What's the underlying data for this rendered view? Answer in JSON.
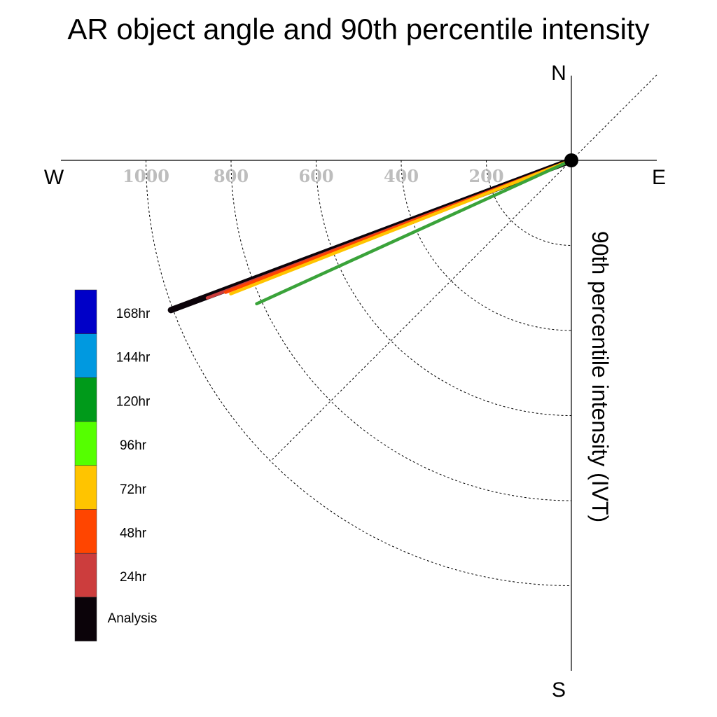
{
  "chart_data": {
    "type": "polar-line",
    "title": "AR object angle and 90th percentile intensity",
    "ylabel": "90th percentile intensity (IVT)",
    "compass": {
      "north": "N",
      "south": "S",
      "east": "E",
      "west": "W"
    },
    "radial_ticks": [
      200,
      400,
      600,
      800,
      1000
    ],
    "radial_tick_labels": [
      "200",
      "400",
      "600",
      "800",
      "1000"
    ],
    "radial_range": [
      0,
      1000
    ],
    "quadrant": "lower-left (west to south)",
    "grid": true,
    "legend_position": "left",
    "series": [
      {
        "name": "Analysis",
        "angle_deg_below_west": 20.5,
        "intensity": 1005,
        "color": "#0b0309"
      },
      {
        "name": "24hr",
        "angle_deg_below_west": 20.7,
        "intensity": 915,
        "color": "#cc3d3d"
      },
      {
        "name": "48hr",
        "angle_deg_below_west": 20.9,
        "intensity": 870,
        "color": "#ff4500"
      },
      {
        "name": "72hr",
        "angle_deg_below_west": 21.4,
        "intensity": 860,
        "color": "#ffc400"
      },
      {
        "name": "120hr",
        "angle_deg_below_west": 24.5,
        "intensity": 813,
        "color": "#3aa33a"
      }
    ],
    "legend": [
      {
        "label": "168hr",
        "color": "#0000c8"
      },
      {
        "label": "144hr",
        "color": "#0099e0"
      },
      {
        "label": "120hr",
        "color": "#009a1a"
      },
      {
        "label": "96hr",
        "color": "#55ff00"
      },
      {
        "label": "72hr",
        "color": "#ffc400"
      },
      {
        "label": "48hr",
        "color": "#ff4500"
      },
      {
        "label": "24hr",
        "color": "#cc3d3d"
      },
      {
        "label": "Analysis",
        "color": "#0b0309"
      }
    ]
  }
}
